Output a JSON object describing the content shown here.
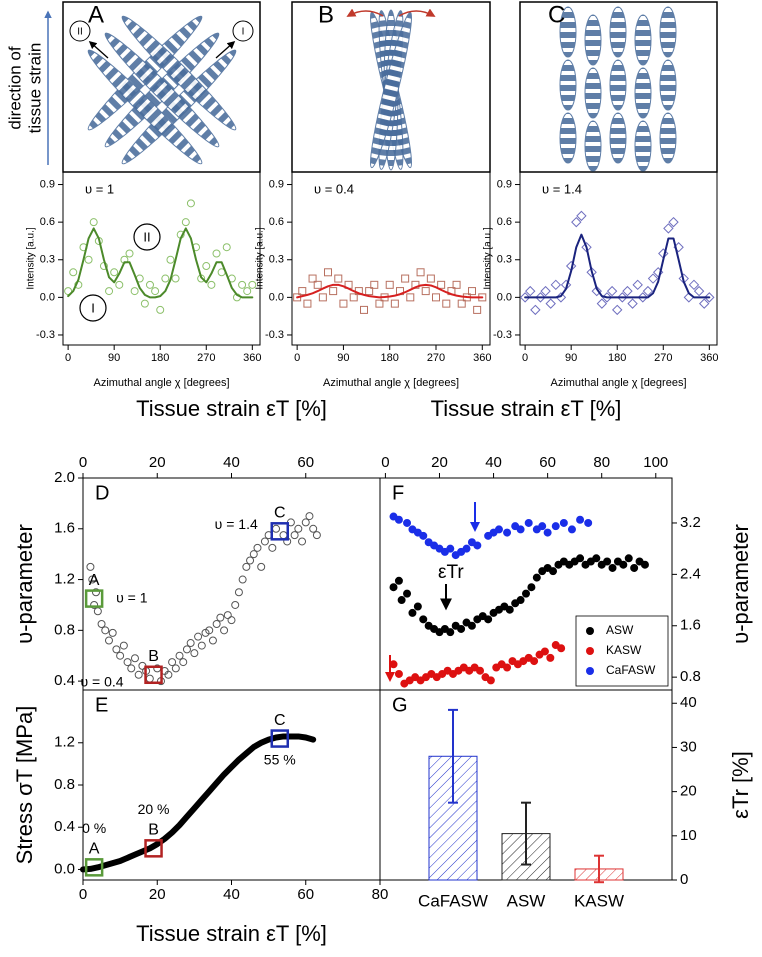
{
  "schematic": {
    "strain_direction": [
      "direction of",
      "tissue strain"
    ],
    "panels": [
      {
        "label": "A",
        "tags": [
          "II",
          "I"
        ]
      },
      {
        "label": "B"
      },
      {
        "label": "C"
      }
    ]
  },
  "chart_data": [
    {
      "type": "scatter",
      "annotation": "υ = 1",
      "peak_labels": [
        "II",
        "I"
      ],
      "xlabel": "Azimuthal angle χ [degrees]",
      "ylabel": "Intensity [a.u.]",
      "xlim": [
        -10,
        375
      ],
      "ylim": [
        -0.38,
        1.0
      ],
      "xticks": [
        0,
        90,
        180,
        270,
        360
      ],
      "yticks": [
        -0.3,
        {
          "value": 0,
          "label": "0.0"
        },
        0.3,
        0.6,
        0.9
      ],
      "x": [
        0,
        10,
        20,
        30,
        40,
        50,
        60,
        70,
        80,
        90,
        100,
        110,
        120,
        130,
        140,
        150,
        160,
        170,
        180,
        190,
        200,
        210,
        220,
        230,
        240,
        250,
        260,
        270,
        280,
        290,
        300,
        310,
        320,
        330,
        340,
        350,
        360
      ],
      "series": [
        {
          "color": "#8cc06a",
          "marker": "circle",
          "values": [
            0.05,
            0.2,
            0.1,
            0.4,
            0.3,
            0.6,
            0.45,
            0.25,
            0.05,
            0.2,
            0.1,
            0.3,
            0.35,
            0.05,
            0.15,
            -0.05,
            0.1,
            0.05,
            -0.1,
            0.15,
            0.3,
            0.15,
            0.5,
            0.6,
            0.75,
            0.4,
            0.15,
            0.25,
            0.1,
            0.35,
            0.2,
            0.4,
            0.15,
            0.0,
            0.1,
            0.05,
            0.1
          ]
        },
        {
          "color": "#4c8a2a",
          "kind": "line",
          "values": [
            0.01,
            0.05,
            0.14,
            0.3,
            0.47,
            0.55,
            0.47,
            0.3,
            0.16,
            0.12,
            0.19,
            0.28,
            0.28,
            0.18,
            0.075,
            0.02,
            0,
            0,
            0.01,
            0.05,
            0.14,
            0.3,
            0.47,
            0.55,
            0.47,
            0.3,
            0.16,
            0.12,
            0.19,
            0.28,
            0.28,
            0.18,
            0.075,
            0.02,
            0,
            0,
            0
          ]
        }
      ]
    },
    {
      "type": "scatter",
      "annotation": "υ = 0.4",
      "xlabel": "Azimuthal angle χ [degrees]",
      "ylabel": "Intensity [a.u.]",
      "xlim": [
        -10,
        375
      ],
      "ylim": [
        -0.38,
        1.0
      ],
      "xticks": [
        0,
        90,
        180,
        270,
        360
      ],
      "yticks": [
        -0.3,
        {
          "value": 0,
          "label": "0.0"
        },
        0.3,
        0.6,
        0.9
      ],
      "x": [
        0,
        10,
        20,
        30,
        40,
        50,
        60,
        70,
        80,
        90,
        100,
        110,
        120,
        130,
        140,
        150,
        160,
        170,
        180,
        190,
        200,
        210,
        220,
        230,
        240,
        250,
        260,
        270,
        280,
        290,
        300,
        310,
        320,
        330,
        340,
        350,
        360
      ],
      "series": [
        {
          "color": "#b87060",
          "marker": "square",
          "values": [
            0.0,
            0.05,
            -0.05,
            0.15,
            0.1,
            0.0,
            0.2,
            0.05,
            0.15,
            -0.05,
            0.1,
            0.0,
            0.05,
            -0.1,
            0.05,
            0.1,
            -0.05,
            0.0,
            0.1,
            -0.05,
            0.05,
            0.15,
            0.0,
            0.1,
            0.2,
            0.05,
            0.15,
            0.0,
            0.1,
            -0.05,
            0.05,
            0.1,
            -0.05,
            0.0,
            0.05,
            -0.1,
            0.0
          ]
        },
        {
          "color": "#d62020",
          "kind": "line",
          "values": [
            0,
            0.01,
            0.02,
            0.032,
            0.05,
            0.07,
            0.088,
            0.1,
            0.1,
            0.088,
            0.07,
            0.05,
            0.032,
            0.02,
            0.01,
            0.005,
            0,
            0.003,
            0.007,
            0.014,
            0.025,
            0.041,
            0.06,
            0.08,
            0.095,
            0.1,
            0.095,
            0.08,
            0.06,
            0.041,
            0.025,
            0.014,
            0.007,
            0.003,
            0,
            0,
            0
          ]
        }
      ]
    },
    {
      "type": "scatter",
      "annotation": "υ = 1.4",
      "xlabel": "Azimuthal angle χ [degrees]",
      "ylabel": "Intensity [a.u.]",
      "xlim": [
        -10,
        375
      ],
      "ylim": [
        -0.38,
        1.0
      ],
      "xticks": [
        0,
        90,
        180,
        270,
        360
      ],
      "yticks": [
        -0.3,
        {
          "value": 0,
          "label": "0.0"
        },
        0.3,
        0.6,
        0.9
      ],
      "x": [
        0,
        10,
        20,
        30,
        40,
        50,
        60,
        70,
        80,
        90,
        100,
        110,
        120,
        130,
        140,
        150,
        160,
        170,
        180,
        190,
        200,
        210,
        220,
        230,
        240,
        250,
        260,
        270,
        280,
        290,
        300,
        310,
        320,
        330,
        340,
        350,
        360
      ],
      "series": [
        {
          "color": "#6f6fbf",
          "marker": "diamond",
          "values": [
            0.0,
            0.05,
            -0.1,
            0.0,
            0.05,
            -0.05,
            0.1,
            0.0,
            0.1,
            0.25,
            0.6,
            0.65,
            0.4,
            0.2,
            0.05,
            -0.05,
            0.0,
            0.05,
            -0.1,
            0.0,
            0.05,
            -0.05,
            0.1,
            0.0,
            0.05,
            0.15,
            0.2,
            0.35,
            0.55,
            0.6,
            0.4,
            0.15,
            0.0,
            0.1,
            0.05,
            -0.05,
            0.0
          ]
        },
        {
          "color": "#1a237e",
          "kind": "line",
          "values": [
            0,
            0,
            0,
            0,
            0,
            0,
            0,
            0.01,
            0.068,
            0.21,
            0.4,
            0.5,
            0.4,
            0.21,
            0.068,
            0.01,
            0,
            0,
            0,
            0,
            0,
            0,
            0,
            0,
            0,
            0.033,
            0.125,
            0.3,
            0.47,
            0.47,
            0.3,
            0.125,
            0.033,
            0,
            0,
            0,
            0
          ]
        }
      ]
    },
    {
      "type": "scatter",
      "panel": "D",
      "xlabel": "Tissue strain εT [%]",
      "ylabel": "υ-parameter",
      "xlim": [
        0,
        80
      ],
      "ylim": [
        0.33,
        2.0
      ],
      "xticks": [
        0,
        20,
        40,
        60
      ],
      "yticks": [
        0.4,
        0.8,
        1.2,
        1.6,
        {
          "value": 2,
          "label": "2.0"
        }
      ],
      "color": "#555555",
      "marker": "circle",
      "x": [
        2,
        2.5,
        3,
        3.5,
        4,
        5,
        6,
        7,
        8,
        9,
        10,
        11,
        12,
        13,
        14,
        15,
        16,
        17,
        18,
        20,
        21,
        22,
        23,
        24,
        25,
        26,
        27,
        28,
        29,
        30,
        31,
        32,
        33,
        34,
        35,
        36,
        37,
        38,
        39,
        40,
        41,
        42,
        43,
        44,
        45,
        46,
        47,
        48,
        49,
        50,
        51,
        52,
        54,
        55,
        56,
        57,
        58,
        59,
        60,
        61,
        62,
        63
      ],
      "values": [
        1.3,
        1.2,
        1.0,
        1.1,
        0.95,
        0.85,
        0.8,
        0.72,
        0.78,
        0.65,
        0.6,
        0.68,
        0.55,
        0.5,
        0.58,
        0.45,
        0.52,
        0.48,
        0.42,
        0.5,
        0.4,
        0.48,
        0.45,
        0.55,
        0.5,
        0.6,
        0.55,
        0.65,
        0.7,
        0.62,
        0.75,
        0.68,
        0.78,
        0.8,
        0.72,
        0.85,
        0.9,
        0.8,
        0.92,
        0.88,
        1.0,
        1.1,
        1.2,
        1.3,
        1.35,
        1.4,
        1.45,
        1.3,
        1.5,
        1.55,
        1.45,
        1.6,
        1.55,
        1.5,
        1.65,
        1.55,
        1.6,
        1.5,
        1.65,
        1.7,
        1.6,
        1.55
      ],
      "points": [
        {
          "label": "A",
          "x": 3,
          "y": 1.05,
          "color": "#5a9a3a",
          "note": "υ = 1"
        },
        {
          "label": "B",
          "x": 19,
          "y": 0.45,
          "color": "#b22222",
          "note": "υ = 0.4"
        },
        {
          "label": "C",
          "x": 53,
          "y": 1.58,
          "color": "#1f2fb0",
          "note": "υ = 1.4"
        }
      ]
    },
    {
      "type": "line",
      "panel": "E",
      "xlabel": "Tissue strain εT [%]",
      "ylabel": "Stress σT [MPa]",
      "xlim": [
        0,
        80
      ],
      "ylim": [
        -0.1,
        1.7
      ],
      "xticks": [
        0,
        20,
        40,
        60,
        80
      ],
      "yticks": [
        {
          "value": 0,
          "label": "0.0"
        },
        0.4,
        0.8,
        1.2
      ],
      "color": "#000000",
      "x": [
        0,
        2,
        4,
        6,
        8,
        10,
        12,
        14,
        16,
        18,
        20,
        22,
        24,
        26,
        28,
        30,
        32,
        34,
        36,
        38,
        40,
        42,
        44,
        46,
        48,
        50,
        52,
        54,
        56,
        58,
        60,
        62
      ],
      "values": [
        0,
        0.005,
        0.02,
        0.04,
        0.06,
        0.08,
        0.11,
        0.14,
        0.17,
        0.2,
        0.24,
        0.29,
        0.35,
        0.42,
        0.5,
        0.58,
        0.66,
        0.74,
        0.82,
        0.9,
        0.97,
        1.04,
        1.1,
        1.16,
        1.2,
        1.23,
        1.25,
        1.26,
        1.26,
        1.26,
        1.25,
        1.23
      ],
      "points": [
        {
          "label": "A",
          "x": 3,
          "y": 0.02,
          "color": "#5a9a3a",
          "note": "0 %"
        },
        {
          "label": "B",
          "x": 19,
          "y": 0.2,
          "color": "#b22222",
          "note": "20 %"
        },
        {
          "label": "C",
          "x": 53,
          "y": 1.24,
          "color": "#1f2fb0",
          "note": "55 %"
        }
      ]
    },
    {
      "type": "scatter",
      "panel": "F",
      "xlabel": "Tissue strain εT [%]",
      "ylabel": "υ-parameter",
      "annotation": "εTr",
      "legend": "lower right",
      "xlim": [
        -2,
        106
      ],
      "ylim": [
        0.6,
        3.9
      ],
      "xticks": [
        0,
        20,
        40,
        60,
        80,
        100
      ],
      "yticks": [
        0.8,
        1.6,
        2.4,
        3.2
      ],
      "series": [
        {
          "name": "ASW",
          "color": "#000000",
          "marker": "circle",
          "filled": true,
          "x": [
            3,
            5,
            6,
            8,
            10,
            12,
            14,
            16,
            18,
            20,
            22,
            24,
            26,
            28,
            30,
            32,
            34,
            36,
            38,
            40,
            42,
            44,
            46,
            48,
            50,
            52,
            54,
            56,
            58,
            60,
            62,
            64,
            66,
            68,
            70,
            72,
            74,
            76,
            78,
            80,
            82,
            84,
            86,
            88,
            90,
            92,
            94,
            96
          ],
          "values": [
            2.2,
            2.3,
            2.0,
            2.1,
            1.8,
            1.9,
            1.7,
            1.6,
            1.55,
            1.5,
            1.55,
            1.5,
            1.6,
            1.55,
            1.65,
            1.6,
            1.7,
            1.75,
            1.7,
            1.8,
            1.85,
            1.9,
            1.85,
            1.95,
            2.0,
            2.1,
            2.2,
            2.35,
            2.45,
            2.5,
            2.45,
            2.55,
            2.6,
            2.55,
            2.6,
            2.65,
            2.55,
            2.6,
            2.65,
            2.55,
            2.6,
            2.5,
            2.6,
            2.55,
            2.65,
            2.5,
            2.6,
            2.55
          ]
        },
        {
          "name": "KASW",
          "color": "#dd1111",
          "marker": "circle",
          "filled": true,
          "x": [
            3,
            5,
            7,
            9,
            11,
            13,
            15,
            17,
            19,
            21,
            23,
            25,
            27,
            29,
            31,
            33,
            35,
            37,
            39,
            41,
            43,
            45,
            47,
            49,
            51,
            53,
            55,
            57,
            59,
            61,
            63,
            65
          ],
          "values": [
            1.0,
            0.85,
            0.7,
            0.75,
            0.8,
            0.75,
            0.8,
            0.85,
            0.8,
            0.85,
            0.9,
            0.85,
            0.9,
            0.95,
            0.9,
            0.95,
            0.9,
            0.8,
            0.75,
            0.95,
            1.0,
            0.95,
            1.05,
            1.0,
            1.05,
            1.1,
            1.05,
            1.15,
            1.2,
            1.1,
            1.3,
            1.25
          ]
        },
        {
          "name": "CaFASW",
          "color": "#1a2ee8",
          "marker": "circle",
          "filled": true,
          "x": [
            3,
            5,
            8,
            10,
            12,
            14,
            16,
            18,
            20,
            22,
            24,
            26,
            28,
            30,
            32,
            34,
            38,
            40,
            42,
            45,
            48,
            50,
            53,
            56,
            58,
            60,
            63,
            66,
            69,
            72,
            75
          ],
          "values": [
            3.3,
            3.25,
            3.2,
            3.1,
            3.05,
            3.0,
            2.9,
            2.85,
            2.8,
            2.75,
            2.8,
            2.7,
            2.75,
            2.8,
            2.9,
            2.85,
            3.0,
            3.05,
            3.1,
            3.05,
            3.15,
            3.1,
            3.2,
            3.1,
            3.15,
            3.05,
            3.15,
            3.2,
            3.1,
            3.25,
            3.2
          ]
        }
      ]
    },
    {
      "type": "bar",
      "panel": "G",
      "ylabel": "εTr [%]",
      "hatch": true,
      "categories": [
        "CaFASW",
        "ASW",
        "KASW"
      ],
      "values": [
        28,
        10.5,
        2.5
      ],
      "errors": [
        10.5,
        7,
        3
      ],
      "colors": [
        "#2233cc",
        "#222222",
        "#dd3333"
      ],
      "ylim": [
        0,
        43
      ],
      "yticks": [
        0,
        10,
        20,
        30,
        40
      ]
    }
  ]
}
